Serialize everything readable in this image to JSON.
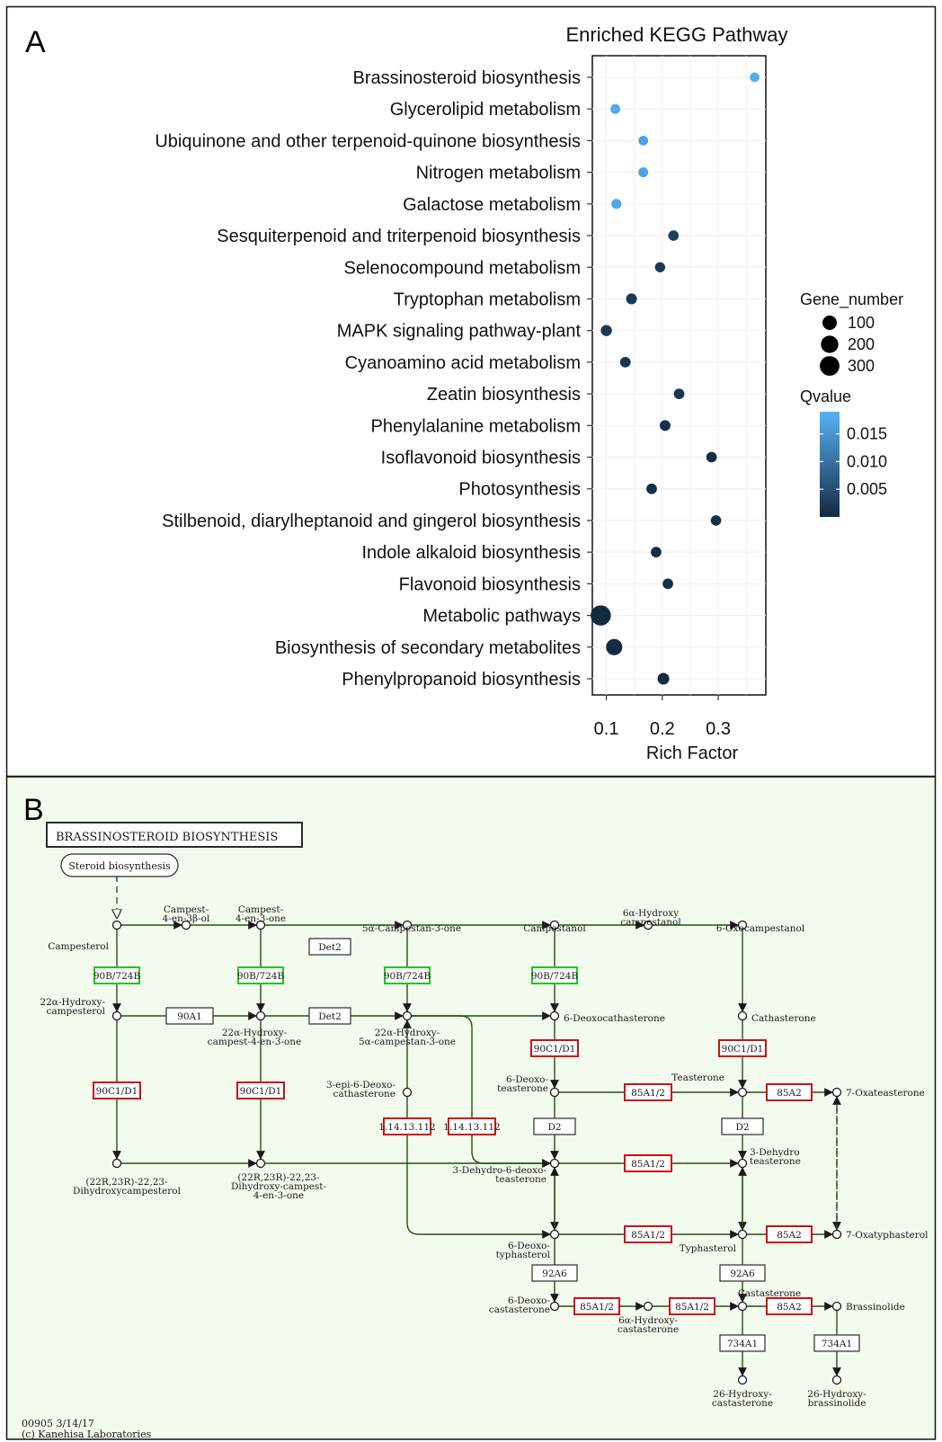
{
  "panel_a": {
    "letter": "A",
    "chart_data": {
      "type": "scatter",
      "title": "Enriched KEGG Pathway",
      "xlabel": "Rich Factor",
      "ylabel": "",
      "xlim": [
        0.075,
        0.385
      ],
      "x_ticks": [
        0.1,
        0.2,
        0.3
      ],
      "x_tick_labels": [
        "0.1",
        "0.2",
        "0.3"
      ],
      "grid": true,
      "legend_position": "right",
      "size_legend": {
        "title": "Gene_number",
        "labels": [
          "100",
          "200",
          "300"
        ],
        "values": [
          100,
          200,
          300
        ]
      },
      "color_legend": {
        "title": "Qvalue",
        "labels": [
          "0.015",
          "0.010",
          "0.005"
        ],
        "values": [
          0.015,
          0.01,
          0.005
        ],
        "range": [
          0.0,
          0.019
        ],
        "low_color": "#132b43",
        "high_color": "#56b1f7"
      },
      "categories": [
        "Brassinosteroid biosynthesis",
        "Glycerolipid metabolism",
        "Ubiquinone and other terpenoid-quinone biosynthesis",
        "Nitrogen metabolism",
        "Galactose metabolism",
        "Sesquiterpenoid and triterpenoid  biosynthesis",
        "Selenocompound metabolism",
        "Tryptophan metabolism",
        "MAPK signaling pathway-plant",
        "Cyanoamino acid metabolism",
        "Zeatin biosynthesis",
        "Phenylalanine metabolism",
        "Isoflavonoid biosynthesis",
        "Photosynthesis",
        "Stilbenoid, diarylheptanoid and gingerol biosynthesis",
        "Indole alkaloid biosynthesis",
        "Flavonoid biosynthesis",
        "Metabolic  pathways",
        "Biosynthesis  of secondary metabolites",
        "Phenylpropanoid biosynthesis"
      ],
      "points": [
        {
          "rich_factor": 0.365,
          "gene_number": 12,
          "qvalue": 0.0185
        },
        {
          "rich_factor": 0.116,
          "gene_number": 14,
          "qvalue": 0.018
        },
        {
          "rich_factor": 0.166,
          "gene_number": 12,
          "qvalue": 0.017
        },
        {
          "rich_factor": 0.166,
          "gene_number": 14,
          "qvalue": 0.017
        },
        {
          "rich_factor": 0.118,
          "gene_number": 15,
          "qvalue": 0.0175
        },
        {
          "rich_factor": 0.22,
          "gene_number": 20,
          "qvalue": 0.0025
        },
        {
          "rich_factor": 0.196,
          "gene_number": 18,
          "qvalue": 0.002
        },
        {
          "rich_factor": 0.145,
          "gene_number": 26,
          "qvalue": 0.002
        },
        {
          "rich_factor": 0.1,
          "gene_number": 30,
          "qvalue": 0.002
        },
        {
          "rich_factor": 0.134,
          "gene_number": 22,
          "qvalue": 0.0015
        },
        {
          "rich_factor": 0.23,
          "gene_number": 22,
          "qvalue": 0.0015
        },
        {
          "rich_factor": 0.205,
          "gene_number": 25,
          "qvalue": 0.001
        },
        {
          "rich_factor": 0.288,
          "gene_number": 22,
          "qvalue": 0.0005
        },
        {
          "rich_factor": 0.181,
          "gene_number": 22,
          "qvalue": 0.0005
        },
        {
          "rich_factor": 0.296,
          "gene_number": 20,
          "qvalue": 0.0005
        },
        {
          "rich_factor": 0.189,
          "gene_number": 22,
          "qvalue": 0.0005
        },
        {
          "rich_factor": 0.21,
          "gene_number": 22,
          "qvalue": 0.0005
        },
        {
          "rich_factor": 0.09,
          "gene_number": 330,
          "qvalue": 0.0001
        },
        {
          "rich_factor": 0.114,
          "gene_number": 160,
          "qvalue": 0.0001
        },
        {
          "rich_factor": 0.202,
          "gene_number": 40,
          "qvalue": 0.0001
        }
      ]
    }
  },
  "panel_b": {
    "letter": "B",
    "title": "BRASSINOSTEROID  BIOSYNTHESIS",
    "colors": {
      "background": "#f3faee",
      "line": "#235211",
      "green_box": "#22c522",
      "red_box": "#cc1111"
    },
    "link_box": "Steroid biosynthesis",
    "compounds": [
      {
        "label": "Campest-\n4-en-3β-ol"
      },
      {
        "label": "Campest-\n4-en-3-one"
      },
      {
        "label": "5α-Campestan-3-one"
      },
      {
        "label": "Campestanol"
      },
      {
        "label": "6α-Hydroxy\ncampestanol"
      },
      {
        "label": "6-Oxocampestanol"
      },
      {
        "label": "Campesterol"
      },
      {
        "label": "22α-Hydroxy-\ncampesterol"
      },
      {
        "label": "22α-Hydroxy-\ncampest-4-en-3-one"
      },
      {
        "label": "22α-Hydroxy-\n5α-campestan-3-one"
      },
      {
        "label": "6-Deoxocathasterone"
      },
      {
        "label": "Cathasterone"
      },
      {
        "label": "3-epi-6-Deoxo-\ncathasterone"
      },
      {
        "label": "6-Deoxo-\nteasterone"
      },
      {
        "label": "Teasterone"
      },
      {
        "label": "7-Oxateasterone"
      },
      {
        "label": "3-Dehydro\nteasterone"
      },
      {
        "label": "3-Dehydro-6-deoxo-\nteasterone"
      },
      {
        "label": "(22R,23R)-22,23-\nDihydroxycampesterol"
      },
      {
        "label": "(22R,23R)-22,23-\nDihydroxy-campest-\n4-en-3-one"
      },
      {
        "label": "7-Oxatyphasterol"
      },
      {
        "label": "6-Deoxo-\ntyphasterol"
      },
      {
        "label": "Typhasterol"
      },
      {
        "label": "Castasterone"
      },
      {
        "label": "6-Deoxo-\ncastasterone"
      },
      {
        "label": "6α-Hydroxy-\ncastasterone"
      },
      {
        "label": "Brassinolide"
      },
      {
        "label": "26-Hydroxy-\ncastasterone"
      },
      {
        "label": "26-Hydroxy-\nbrassinolide"
      }
    ],
    "enzymes": [
      {
        "label": "90B/724B",
        "status": "green"
      },
      {
        "label": "90B/724B",
        "status": "green"
      },
      {
        "label": "90B/724B",
        "status": "green"
      },
      {
        "label": "90B/724B",
        "status": "green"
      },
      {
        "label": "Det2",
        "status": "plain"
      },
      {
        "label": "Det2",
        "status": "plain"
      },
      {
        "label": "90A1",
        "status": "plain"
      },
      {
        "label": "90C1/D1",
        "status": "red"
      },
      {
        "label": "90C1/D1",
        "status": "red"
      },
      {
        "label": "90C1/D1",
        "status": "red"
      },
      {
        "label": "90C1/D1",
        "status": "red"
      },
      {
        "label": "1.14.13.112",
        "status": "red"
      },
      {
        "label": "1.14.13.112",
        "status": "red"
      },
      {
        "label": "85A1/2",
        "status": "red"
      },
      {
        "label": "85A2",
        "status": "red"
      },
      {
        "label": "D2",
        "status": "plain"
      },
      {
        "label": "D2",
        "status": "plain"
      },
      {
        "label": "85A1/2",
        "status": "red"
      },
      {
        "label": "85A1/2",
        "status": "red"
      },
      {
        "label": "85A2",
        "status": "red"
      },
      {
        "label": "92A6",
        "status": "plain"
      },
      {
        "label": "92A6",
        "status": "plain"
      },
      {
        "label": "85A1/2",
        "status": "red"
      },
      {
        "label": "85A1/2",
        "status": "red"
      },
      {
        "label": "85A2",
        "status": "red"
      },
      {
        "label": "734A1",
        "status": "plain"
      },
      {
        "label": "734A1",
        "status": "plain"
      }
    ],
    "footer": [
      "00905 3/14/17",
      "(c) Kanehisa Laboratories"
    ]
  }
}
